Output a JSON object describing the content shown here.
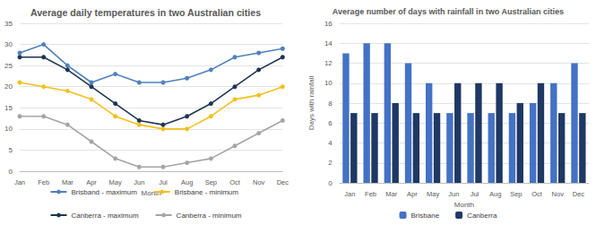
{
  "chart_data": [
    {
      "type": "line",
      "title": "Average daily temperatures in two Australian cities",
      "x_label": "Month",
      "categories": [
        "Jan",
        "Feb",
        "Mar",
        "Apr",
        "May",
        "Jun",
        "Jul",
        "Aug",
        "Sep",
        "Oct",
        "Nov",
        "Dec"
      ],
      "series": [
        {
          "name": "Brisband - maximum",
          "color": "#4f81bd",
          "values": [
            28,
            30,
            25,
            21,
            23,
            21,
            21,
            22,
            24,
            27,
            28,
            29
          ]
        },
        {
          "name": "Brisbane - minimum",
          "color": "#f2c01e",
          "values": [
            21,
            20,
            19,
            17,
            13,
            11,
            10,
            10,
            13,
            17,
            18,
            20
          ]
        },
        {
          "name": "Canberra - maximum",
          "color": "#1f3552",
          "values": [
            27,
            27,
            24,
            20,
            16,
            12,
            11,
            13,
            16,
            20,
            24,
            27
          ]
        },
        {
          "name": "Canberra - minimum",
          "color": "#a5a5a5",
          "values": [
            13,
            13,
            11,
            7,
            3,
            1,
            1,
            2,
            3,
            6,
            9,
            12
          ]
        }
      ],
      "ylim": [
        0,
        35
      ],
      "yticks": [
        0,
        5,
        10,
        15,
        20,
        25,
        30,
        35
      ],
      "grid": true,
      "legend": "bottom",
      "marker": "circle"
    },
    {
      "type": "bar",
      "title": "Average number of days with rainfall in two Australian cities",
      "x_label": "Month",
      "y_label": "Days with rainfall",
      "categories": [
        "Jan",
        "Feb",
        "Mar",
        "Apr",
        "May",
        "Jun",
        "Jul",
        "Aug",
        "Sep",
        "Oct",
        "Nov",
        "Dec"
      ],
      "series": [
        {
          "name": "Brisbane",
          "color": "#4472c4",
          "values": [
            13,
            14,
            14,
            12,
            10,
            7,
            7,
            7,
            7,
            8,
            10,
            12
          ]
        },
        {
          "name": "Canberra",
          "color": "#1f3864",
          "values": [
            7,
            7,
            8,
            7,
            7,
            10,
            10,
            10,
            8,
            10,
            7,
            7
          ]
        }
      ],
      "ylim": [
        0,
        16
      ],
      "yticks": [
        0,
        2,
        4,
        6,
        8,
        10,
        12,
        14,
        16
      ],
      "grid": true,
      "legend": "bottom"
    }
  ]
}
